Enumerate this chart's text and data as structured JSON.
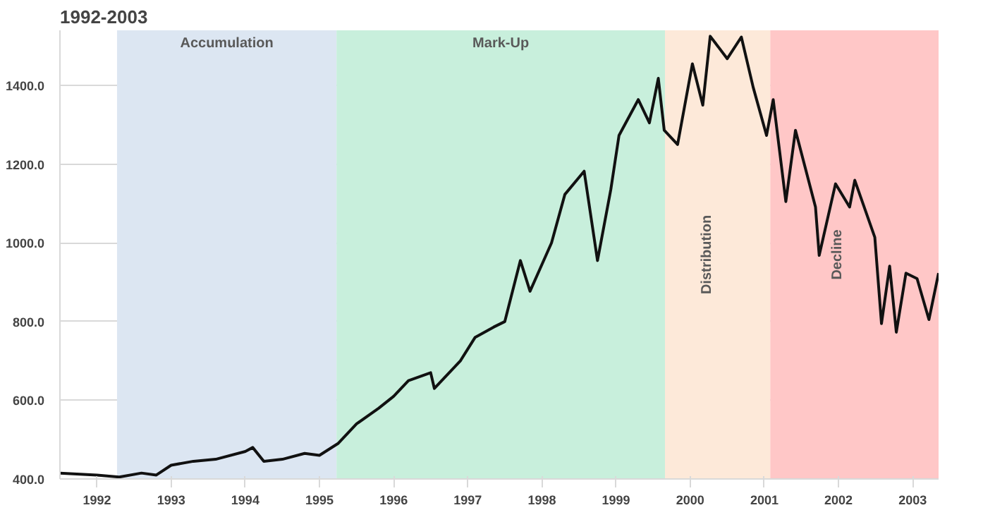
{
  "chart_data": {
    "type": "line",
    "title": "1992-2003",
    "x": [
      1991.5,
      1992.0,
      1992.3,
      1992.6,
      1992.8,
      1993.0,
      1993.3,
      1993.6,
      1994.0,
      1994.1,
      1994.25,
      1994.5,
      1994.8,
      1995.0,
      1995.25,
      1995.5,
      1995.8,
      1996.0,
      1996.2,
      1996.5,
      1996.55,
      1996.9,
      1997.1,
      1997.35,
      1997.5,
      1997.71,
      1997.84,
      1998.13,
      1998.31,
      1998.57,
      1998.75,
      1998.93,
      1999.04,
      1999.3,
      1999.45,
      1999.57,
      1999.65,
      1999.83,
      2000.03,
      2000.17,
      2000.27,
      2000.5,
      2000.69,
      2000.85,
      2001.03,
      2001.12,
      2001.29,
      2001.42,
      2001.69,
      2001.74,
      2001.96,
      2002.15,
      2002.22,
      2002.49,
      2002.58,
      2002.69,
      2002.78,
      2002.91,
      2003.06,
      2003.22,
      2003.35
    ],
    "series": [
      {
        "color": "#111111",
        "values": [
          415,
          410,
          405,
          415,
          410,
          435,
          445,
          450,
          470,
          480,
          445,
          450,
          465,
          460,
          490,
          540,
          580,
          610,
          650,
          670,
          630,
          700,
          760,
          786,
          800,
          955,
          877,
          1000,
          1123,
          1182,
          955,
          1136,
          1273,
          1364,
          1305,
          1418,
          1286,
          1250,
          1455,
          1350,
          1525,
          1468,
          1523,
          1395,
          1273,
          1364,
          1105,
          1286,
          1091,
          968,
          1150,
          1091,
          1159,
          1014,
          795,
          941,
          773,
          923,
          909,
          805,
          923
        ]
      }
    ],
    "xlim": [
      1991.5,
      2003.35
    ],
    "ylim": [
      400,
      1540
    ],
    "xticks": [
      1992,
      1993,
      1994,
      1995,
      1996,
      1997,
      1998,
      1999,
      2000,
      2001,
      2002,
      2003
    ],
    "yticks": [
      {
        "value": 400,
        "label": "400.0"
      },
      {
        "value": 600,
        "label": "600.0"
      },
      {
        "value": 800,
        "label": "800.0"
      },
      {
        "value": 1000,
        "label": "1000.0"
      },
      {
        "value": 1200,
        "label": "1200.0"
      },
      {
        "value": 1400,
        "label": "1400.0"
      }
    ],
    "bands": [
      {
        "axis": "x",
        "from": 1992.27,
        "to": 1995.23,
        "label": "Accumulation",
        "color": "#dce6f2"
      },
      {
        "axis": "x",
        "from": 1995.23,
        "to": 1999.66,
        "label": "Mark-Up",
        "color": "#c8efdc"
      },
      {
        "axis": "x",
        "from": 1999.66,
        "to": 2001.08,
        "label": "Distribution",
        "color": "#fde9d9"
      },
      {
        "axis": "x",
        "from": 2001.08,
        "to": 2003.35,
        "label": "Decline",
        "color": "#ffc7c7"
      }
    ],
    "grid": "y",
    "line_style": "solid"
  }
}
